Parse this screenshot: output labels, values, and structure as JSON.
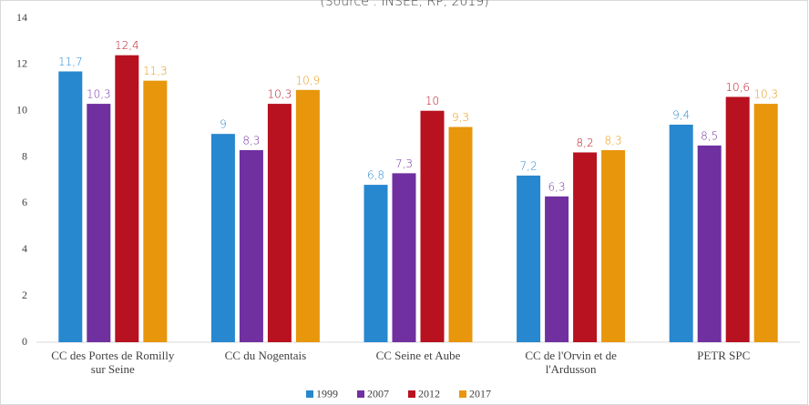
{
  "chart_data": {
    "type": "bar",
    "subtitle": "(Source : INSEE, RP, 2019)",
    "categories": [
      "CC des Portes de Romilly sur Seine",
      "CC du Nogentais",
      "CC Seine et Aube",
      "CC de l'Orvin et de l'Ardusson",
      "PETR SPC"
    ],
    "series": [
      {
        "name": "1999",
        "color": "#2787cf",
        "values": [
          11.7,
          9,
          6.8,
          7.2,
          9.4
        ],
        "value_labels": [
          "11,7",
          "9",
          "6,8",
          "7,2",
          "9,4"
        ]
      },
      {
        "name": "2007",
        "color": "#7030a0",
        "values": [
          10.3,
          8.3,
          7.3,
          6.3,
          8.5
        ],
        "value_labels": [
          "10,3",
          "8,3",
          "7,3",
          "6,3",
          "8,5"
        ]
      },
      {
        "name": "2012",
        "color": "#b8111f",
        "values": [
          12.4,
          10.3,
          10,
          8.2,
          10.6
        ],
        "value_labels": [
          "12,4",
          "10,3",
          "10",
          "8,2",
          "10,6"
        ]
      },
      {
        "name": "2017",
        "color": "#e8960c",
        "values": [
          11.3,
          10.9,
          9.3,
          8.3,
          10.3
        ],
        "value_labels": [
          "11,3",
          "10,9",
          "9,3",
          "8,3",
          "10,3"
        ]
      }
    ],
    "ylim": [
      0,
      14
    ],
    "yticks": [
      0,
      2,
      4,
      6,
      8,
      10,
      12,
      14
    ],
    "grid": false,
    "legend": "bottom"
  }
}
